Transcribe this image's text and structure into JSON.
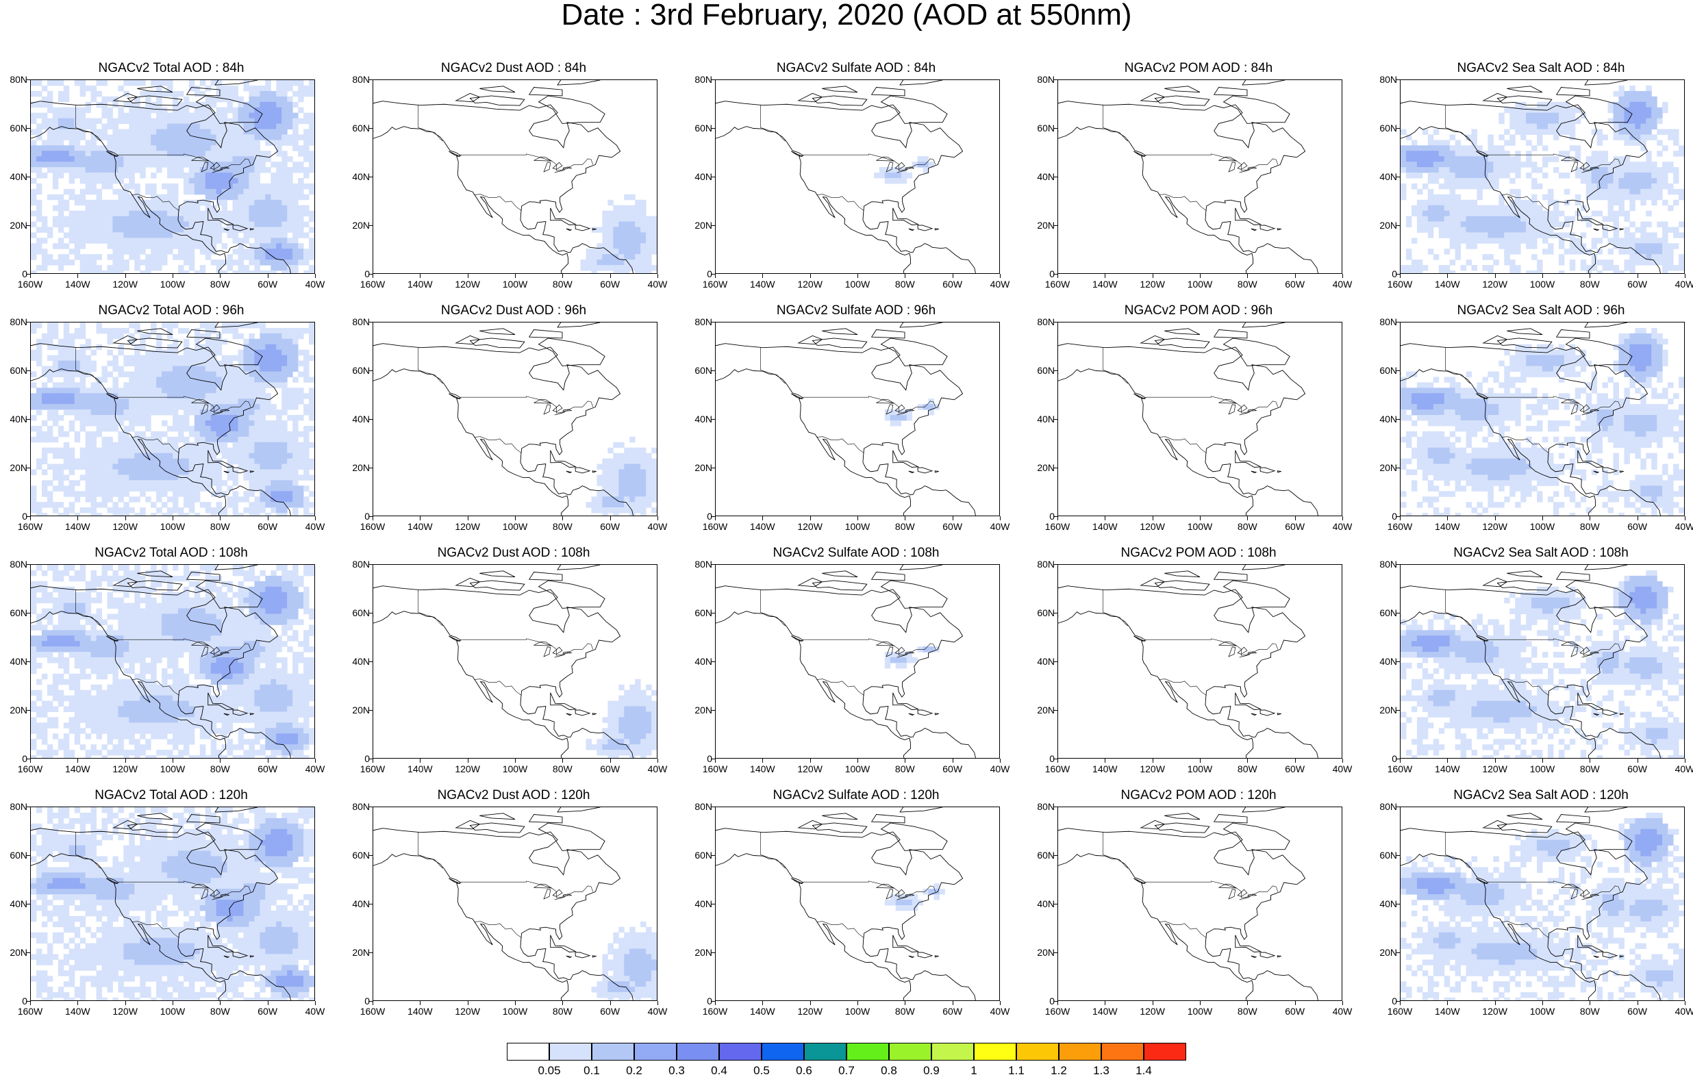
{
  "page": {
    "title": "Date : 3rd February, 2020 (AOD at 550nm)"
  },
  "axes": {
    "y_ticks": [
      "80N",
      "60N",
      "40N",
      "20N",
      "0"
    ],
    "x_ticks": [
      "160W",
      "140W",
      "120W",
      "100W",
      "80W",
      "60W",
      "40W"
    ],
    "lat_range": [
      0,
      80
    ],
    "lon_range": [
      -160,
      -40
    ]
  },
  "colors": {
    "land_outline": "#000000",
    "boundary": "#000000"
  },
  "panels": [
    {
      "title": "NGACv2 Total AOD : 84h",
      "species": "total",
      "lead": 84
    },
    {
      "title": "NGACv2 Dust AOD : 84h",
      "species": "dust",
      "lead": 84
    },
    {
      "title": "NGACv2 Sulfate AOD : 84h",
      "species": "sulfate",
      "lead": 84
    },
    {
      "title": "NGACv2 POM AOD : 84h",
      "species": "pom",
      "lead": 84
    },
    {
      "title": "NGACv2 Sea Salt AOD : 84h",
      "species": "seasalt",
      "lead": 84
    },
    {
      "title": "NGACv2 Total AOD : 96h",
      "species": "total",
      "lead": 96
    },
    {
      "title": "NGACv2 Dust AOD : 96h",
      "species": "dust",
      "lead": 96
    },
    {
      "title": "NGACv2 Sulfate AOD : 96h",
      "species": "sulfate",
      "lead": 96
    },
    {
      "title": "NGACv2 POM AOD : 96h",
      "species": "pom",
      "lead": 96
    },
    {
      "title": "NGACv2 Sea Salt AOD : 96h",
      "species": "seasalt",
      "lead": 96
    },
    {
      "title": "NGACv2 Total AOD : 108h",
      "species": "total",
      "lead": 108
    },
    {
      "title": "NGACv2 Dust AOD : 108h",
      "species": "dust",
      "lead": 108
    },
    {
      "title": "NGACv2 Sulfate AOD : 108h",
      "species": "sulfate",
      "lead": 108
    },
    {
      "title": "NGACv2 POM AOD : 108h",
      "species": "pom",
      "lead": 108
    },
    {
      "title": "NGACv2 Sea Salt AOD : 108h",
      "species": "seasalt",
      "lead": 108
    },
    {
      "title": "NGACv2 Total AOD : 120h",
      "species": "total",
      "lead": 120
    },
    {
      "title": "NGACv2 Dust AOD : 120h",
      "species": "dust",
      "lead": 120
    },
    {
      "title": "NGACv2 Sulfate AOD : 120h",
      "species": "sulfate",
      "lead": 120
    },
    {
      "title": "NGACv2 POM AOD : 120h",
      "species": "pom",
      "lead": 120
    },
    {
      "title": "NGACv2 Sea Salt  AOD : 120h",
      "species": "seasalt",
      "lead": 120
    }
  ],
  "colorbar": {
    "boxes": [
      "#ffffff",
      "#d6e2fb",
      "#b4c8f6",
      "#93aaf4",
      "#7a8ff2",
      "#6468ef",
      "#1065f0",
      "#0a9696",
      "#64ef1a",
      "#9af22a",
      "#c4f54a",
      "#ffff14",
      "#fcc705",
      "#fc9e0a",
      "#fc7512",
      "#fa2a14"
    ],
    "labels": [
      "0.05",
      "0.1",
      "0.2",
      "0.3",
      "0.4",
      "0.5",
      "0.6",
      "0.7",
      "0.8",
      "0.9",
      "1",
      "1.1",
      "1.2",
      "1.3",
      "1.4"
    ]
  }
}
